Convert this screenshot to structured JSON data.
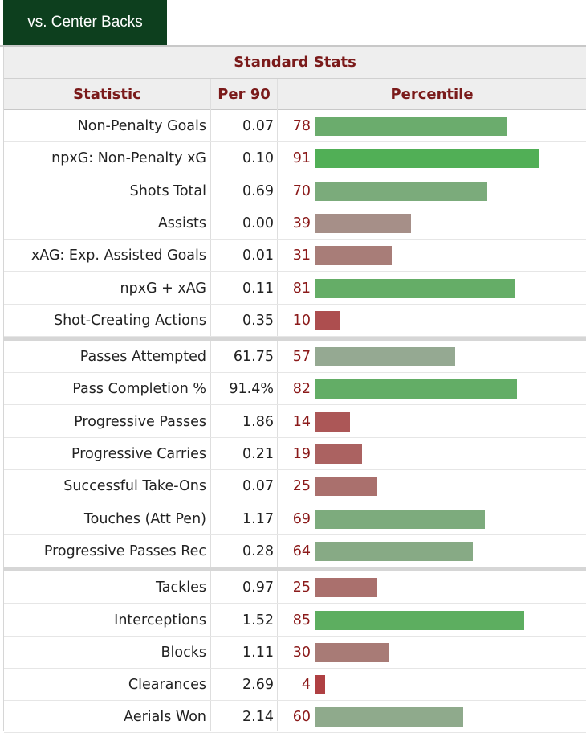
{
  "tab_label": "vs. Center Backs",
  "chart_data": {
    "type": "bar",
    "title": "Standard Stats",
    "columns": [
      "Statistic",
      "Per 90",
      "Percentile"
    ],
    "xlim": [
      0,
      100
    ],
    "groups": [
      {
        "rows": [
          {
            "stat": "Non-Penalty Goals",
            "per90": "0.07",
            "percentile": 78
          },
          {
            "stat": "npxG: Non-Penalty xG",
            "per90": "0.10",
            "percentile": 91
          },
          {
            "stat": "Shots Total",
            "per90": "0.69",
            "percentile": 70
          },
          {
            "stat": "Assists",
            "per90": "0.00",
            "percentile": 39
          },
          {
            "stat": "xAG: Exp. Assisted Goals",
            "per90": "0.01",
            "percentile": 31
          },
          {
            "stat": "npxG + xAG",
            "per90": "0.11",
            "percentile": 81
          },
          {
            "stat": "Shot-Creating Actions",
            "per90": "0.35",
            "percentile": 10
          }
        ]
      },
      {
        "rows": [
          {
            "stat": "Passes Attempted",
            "per90": "61.75",
            "percentile": 57
          },
          {
            "stat": "Pass Completion %",
            "per90": "91.4%",
            "percentile": 82
          },
          {
            "stat": "Progressive Passes",
            "per90": "1.86",
            "percentile": 14
          },
          {
            "stat": "Progressive Carries",
            "per90": "0.21",
            "percentile": 19
          },
          {
            "stat": "Successful Take-Ons",
            "per90": "0.07",
            "percentile": 25
          },
          {
            "stat": "Touches (Att Pen)",
            "per90": "1.17",
            "percentile": 69
          },
          {
            "stat": "Progressive Passes Rec",
            "per90": "0.28",
            "percentile": 64
          }
        ]
      },
      {
        "rows": [
          {
            "stat": "Tackles",
            "per90": "0.97",
            "percentile": 25
          },
          {
            "stat": "Interceptions",
            "per90": "1.52",
            "percentile": 85
          },
          {
            "stat": "Blocks",
            "per90": "1.11",
            "percentile": 30
          },
          {
            "stat": "Clearances",
            "per90": "2.69",
            "percentile": 4
          },
          {
            "stat": "Aerials Won",
            "per90": "2.14",
            "percentile": 60
          }
        ]
      }
    ]
  },
  "colors": {
    "tab_bg": "#0d3f1e",
    "header_text": "#7a1a1a",
    "percentile_text": "#8b1a1a",
    "high": "#3fb046",
    "mid": "#a3a89e",
    "low": "#b0373b"
  }
}
